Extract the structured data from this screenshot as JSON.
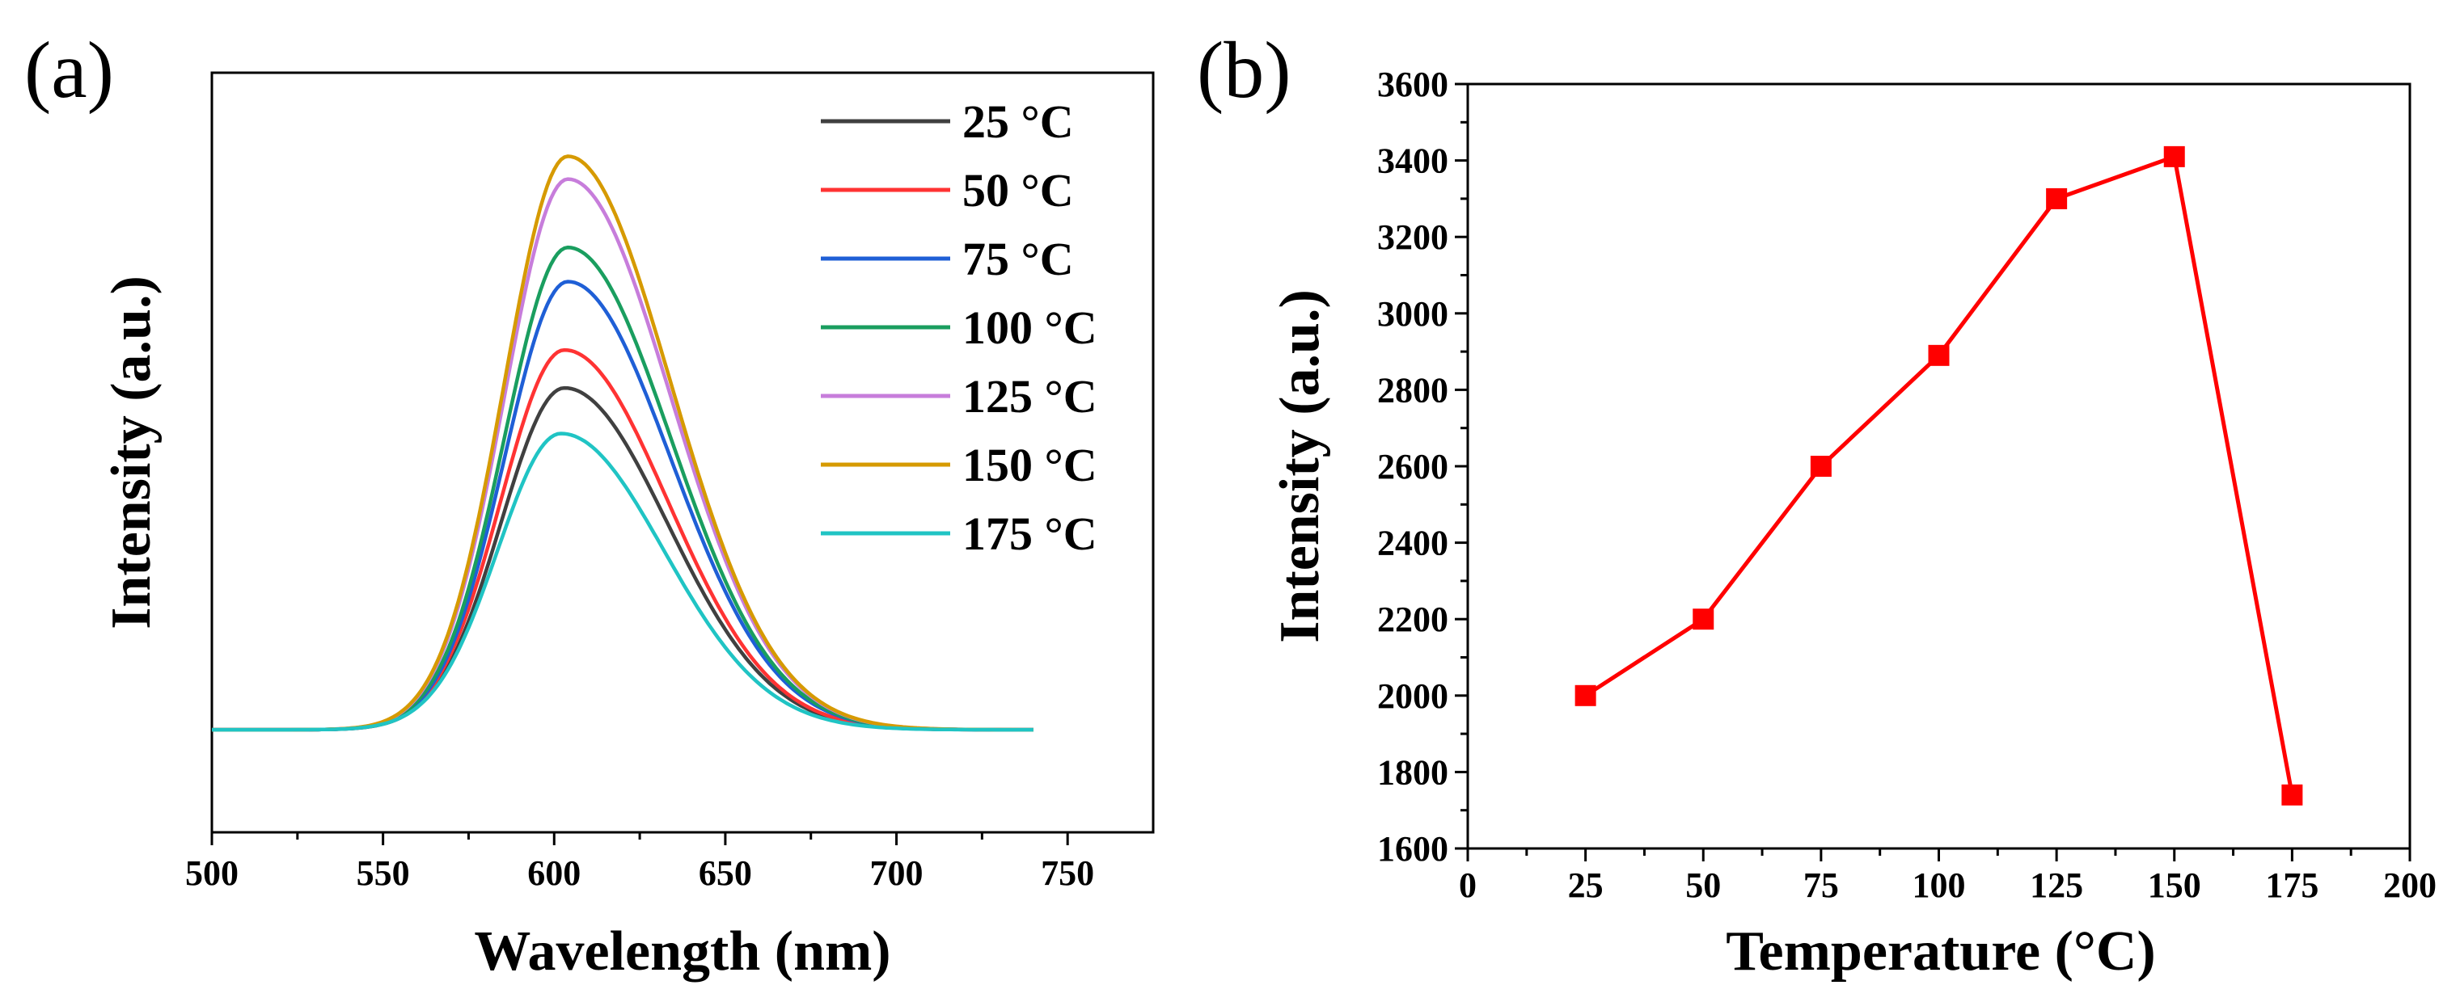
{
  "chart_data": [
    {
      "panel": "(a)",
      "type": "line",
      "title": "",
      "xlabel": "Wavelength (nm)",
      "ylabel": "Intensity (a.u.)",
      "xlim": [
        500,
        775
      ],
      "ylim": [
        0,
        100
      ],
      "xticks": [
        "500",
        "550",
        "600",
        "650",
        "700",
        "750"
      ],
      "xtick_values": [
        500,
        550,
        600,
        650,
        700,
        750
      ],
      "yticks_shown": false,
      "legend_position": "top-right",
      "curve_x_range": [
        500,
        740
      ],
      "series": [
        {
          "name": "25 °C",
          "color": "#404040",
          "peak_nm": 603,
          "peak": 58.5,
          "baseline": 13.5
        },
        {
          "name": "50 °C",
          "color": "#ff3333",
          "peak_nm": 603,
          "peak": 63.5,
          "baseline": 13.5
        },
        {
          "name": "75 °C",
          "color": "#1f5fd6",
          "peak_nm": 604,
          "peak": 72.5,
          "baseline": 13.5
        },
        {
          "name": "100 °C",
          "color": "#1a9e5f",
          "peak_nm": 604,
          "peak": 77.0,
          "baseline": 13.5
        },
        {
          "name": "125 °C",
          "color": "#c77ddb",
          "peak_nm": 604,
          "peak": 86.0,
          "baseline": 13.5
        },
        {
          "name": "150 °C",
          "color": "#d69a00",
          "peak_nm": 604,
          "peak": 89.0,
          "baseline": 13.5
        },
        {
          "name": "175 °C",
          "color": "#20c4c4",
          "peak_nm": 602,
          "peak": 52.5,
          "baseline": 13.5
        }
      ]
    },
    {
      "panel": "(b)",
      "type": "line",
      "title": "",
      "xlabel": "Temperature (°C)",
      "ylabel": "Intensity (a.u.)",
      "xlim": [
        0,
        200
      ],
      "ylim": [
        1600,
        3600
      ],
      "xticks": [
        "0",
        "25",
        "50",
        "75",
        "100",
        "125",
        "150",
        "175",
        "200"
      ],
      "xtick_values": [
        0,
        25,
        50,
        75,
        100,
        125,
        150,
        175,
        200
      ],
      "yticks": [
        "1600",
        "1800",
        "2000",
        "2200",
        "2400",
        "2600",
        "2800",
        "3000",
        "3200",
        "3400",
        "3600"
      ],
      "ytick_values": [
        1600,
        1800,
        2000,
        2200,
        2400,
        2600,
        2800,
        3000,
        3200,
        3400,
        3600
      ],
      "marker": "square",
      "color": "#ff0000",
      "x": [
        25,
        50,
        75,
        100,
        125,
        150,
        175
      ],
      "y": [
        2000,
        2200,
        2600,
        2890,
        3300,
        3410,
        1740
      ]
    }
  ]
}
